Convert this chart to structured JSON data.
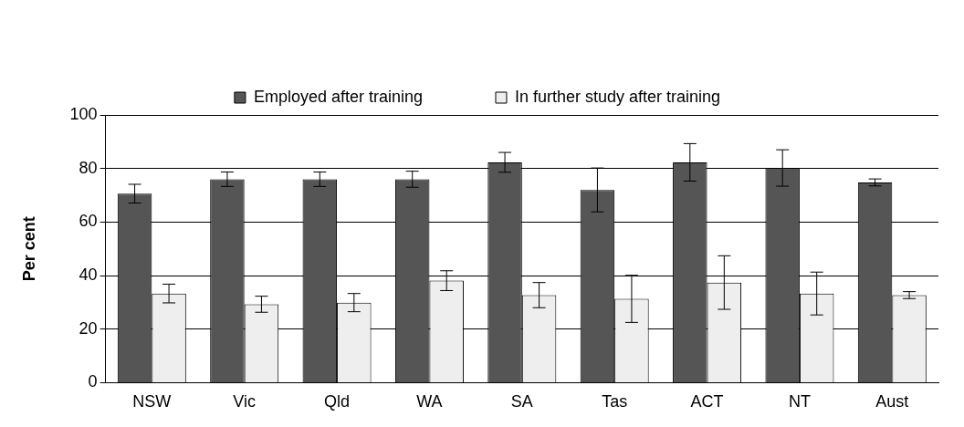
{
  "chart_data": {
    "type": "bar",
    "ylabel": "Per cent",
    "categories": [
      "NSW",
      "Vic",
      "Qld",
      "WA",
      "SA",
      "Tas",
      "ACT",
      "NT",
      "Aust"
    ],
    "series": [
      {
        "name": "Employed after training",
        "color": "#555555",
        "values": [
          70.6,
          76,
          76,
          76,
          82.3,
          72,
          82.3,
          80.2,
          74.8
        ],
        "errors": [
          3.5,
          2.7,
          2.7,
          3,
          3.7,
          8.2,
          7,
          6.8,
          1.3
        ]
      },
      {
        "name": "In further study after training",
        "color": "#eeeeee",
        "values": [
          33.3,
          29.3,
          29.9,
          38.1,
          32.7,
          31.3,
          37.4,
          33.3,
          32.7
        ],
        "errors": [
          3.5,
          3,
          3.4,
          3.7,
          4.7,
          8.8,
          10,
          8,
          1.3
        ]
      }
    ],
    "ylim": [
      0,
      100
    ],
    "yticks": [
      0,
      20,
      40,
      60,
      80,
      100
    ],
    "grid": "y",
    "legend": "top"
  }
}
